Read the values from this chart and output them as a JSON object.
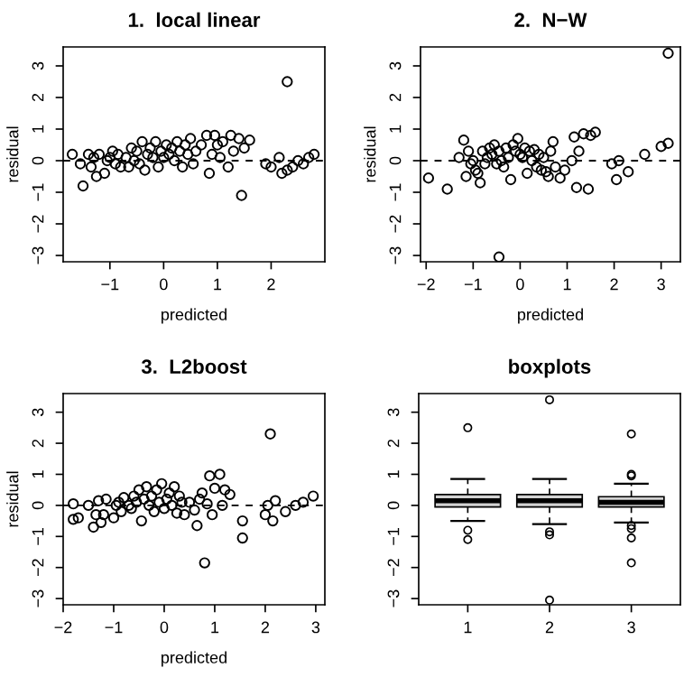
{
  "chart_data": [
    {
      "type": "scatter",
      "title": "1.  local linear",
      "xlabel": "predicted",
      "ylabel": "residual",
      "xlim": [
        -1.87,
        3.0
      ],
      "ylim": [
        -3.2,
        3.6
      ],
      "xticks": [
        -1,
        0,
        1,
        2
      ],
      "yticks": [
        -3,
        -2,
        -1,
        0,
        1,
        2,
        3
      ],
      "marker": "circle",
      "grid": false,
      "ref_lines": [
        {
          "axis": "y",
          "value": 0,
          "line_style": "dashed",
          "color": "#000000"
        }
      ],
      "series": [
        {
          "color": "#000000",
          "x": [
            -1.7,
            -1.55,
            -1.5,
            -1.4,
            -1.35,
            -1.3,
            -1.25,
            -1.2,
            -1.1,
            -1.05,
            -1.0,
            -0.95,
            -0.9,
            -0.85,
            -0.8,
            -0.7,
            -0.65,
            -0.6,
            -0.55,
            -0.5,
            -0.45,
            -0.4,
            -0.35,
            -0.3,
            -0.25,
            -0.2,
            -0.15,
            -0.1,
            -0.05,
            0.0,
            0.05,
            0.1,
            0.15,
            0.2,
            0.25,
            0.3,
            0.35,
            0.4,
            0.45,
            0.5,
            0.55,
            0.6,
            0.7,
            0.8,
            0.85,
            0.9,
            0.95,
            1.0,
            1.05,
            1.1,
            1.2,
            1.25,
            1.3,
            1.4,
            1.45,
            1.5,
            1.6,
            1.9,
            2.0,
            2.15,
            2.2,
            2.3,
            2.3,
            2.4,
            2.5,
            2.6,
            2.7,
            2.8
          ],
          "values": [
            0.2,
            -0.1,
            -0.8,
            0.2,
            -0.2,
            0.1,
            -0.5,
            0.2,
            -0.4,
            0.0,
            0.1,
            0.3,
            -0.1,
            0.2,
            -0.2,
            0.1,
            -0.2,
            0.4,
            0.0,
            0.3,
            -0.1,
            0.6,
            -0.3,
            0.2,
            0.4,
            0.1,
            0.6,
            -0.2,
            0.3,
            0.1,
            0.5,
            0.2,
            0.4,
            0.0,
            0.6,
            0.3,
            -0.2,
            0.5,
            0.2,
            0.7,
            -0.1,
            0.3,
            0.5,
            0.8,
            -0.4,
            0.2,
            0.8,
            0.5,
            0.1,
            0.6,
            -0.2,
            0.8,
            0.3,
            0.7,
            -1.1,
            0.4,
            0.65,
            -0.1,
            -0.2,
            0.1,
            -0.4,
            -0.3,
            2.5,
            -0.2,
            0.0,
            -0.1,
            0.1,
            0.2
          ]
        }
      ]
    },
    {
      "type": "scatter",
      "title": "2.  N−W",
      "xlabel": "predicted",
      "ylabel": "residual",
      "xlim": [
        -2.12,
        3.41
      ],
      "ylim": [
        -3.2,
        3.6
      ],
      "xticks": [
        -2,
        -1,
        0,
        1,
        2,
        3
      ],
      "yticks": [
        -3,
        -2,
        -1,
        0,
        1,
        2,
        3
      ],
      "marker": "circle",
      "grid": false,
      "ref_lines": [
        {
          "axis": "y",
          "value": 0,
          "line_style": "dashed",
          "color": "#000000"
        }
      ],
      "series": [
        {
          "color": "#000000",
          "x": [
            -1.95,
            -1.55,
            -1.3,
            -1.2,
            -1.15,
            -1.1,
            -1.05,
            -1.0,
            -0.95,
            -0.9,
            -0.85,
            -0.8,
            -0.75,
            -0.7,
            -0.65,
            -0.6,
            -0.55,
            -0.5,
            -0.45,
            -0.4,
            -0.35,
            -0.3,
            -0.25,
            -0.2,
            -0.15,
            -0.1,
            -0.05,
            0.0,
            0.05,
            0.1,
            0.15,
            0.2,
            0.25,
            0.3,
            0.35,
            0.4,
            0.45,
            0.5,
            0.55,
            0.6,
            0.65,
            0.7,
            0.75,
            0.85,
            0.95,
            1.1,
            1.15,
            1.2,
            1.25,
            1.35,
            1.45,
            1.5,
            1.6,
            1.95,
            2.05,
            2.1,
            2.3,
            2.65,
            3.0,
            3.15,
            3.15,
            -0.45
          ],
          "values": [
            -0.55,
            -0.9,
            0.1,
            0.65,
            -0.5,
            0.3,
            -0.1,
            0.0,
            -0.3,
            -0.4,
            -0.7,
            0.3,
            -0.1,
            0.1,
            0.4,
            0.2,
            0.5,
            -0.1,
            0.3,
            0.0,
            -0.2,
            0.4,
            0.1,
            -0.6,
            0.5,
            0.3,
            0.7,
            0.2,
            0.1,
            0.4,
            -0.4,
            0.3,
            0.0,
            0.35,
            -0.2,
            0.2,
            -0.3,
            0.1,
            -0.35,
            -0.5,
            0.3,
            0.6,
            -0.2,
            -0.55,
            -0.3,
            0.0,
            0.75,
            -0.85,
            0.3,
            0.85,
            -0.9,
            0.8,
            0.9,
            -0.1,
            -0.6,
            0.0,
            -0.35,
            0.2,
            0.45,
            0.55,
            3.4,
            -3.05
          ]
        }
      ]
    },
    {
      "type": "scatter",
      "title": "3.  L2boost",
      "xlabel": "predicted",
      "ylabel": "residual",
      "xlim": [
        -2.0,
        3.18
      ],
      "ylim": [
        -3.2,
        3.6
      ],
      "xticks": [
        -2,
        -1,
        0,
        1,
        2,
        3
      ],
      "yticks": [
        -3,
        -2,
        -1,
        0,
        1,
        2,
        3
      ],
      "marker": "circle",
      "grid": false,
      "ref_lines": [
        {
          "axis": "y",
          "value": 0,
          "line_style": "dashed",
          "color": "#000000"
        }
      ],
      "series": [
        {
          "color": "#000000",
          "x": [
            -1.8,
            -1.8,
            -1.7,
            -1.5,
            -1.4,
            -1.35,
            -1.3,
            -1.25,
            -1.2,
            -1.15,
            -1.0,
            -0.95,
            -0.9,
            -0.85,
            -0.8,
            -0.7,
            -0.65,
            -0.6,
            -0.55,
            -0.5,
            -0.45,
            -0.4,
            -0.35,
            -0.3,
            -0.25,
            -0.2,
            -0.15,
            -0.1,
            -0.05,
            0.0,
            0.05,
            0.1,
            0.15,
            0.2,
            0.25,
            0.3,
            0.35,
            0.4,
            0.5,
            0.6,
            0.65,
            0.7,
            0.75,
            0.8,
            0.85,
            0.9,
            0.95,
            1.0,
            1.1,
            1.15,
            1.2,
            1.3,
            1.55,
            1.55,
            2.0,
            2.05,
            2.1,
            2.15,
            2.2,
            2.4,
            2.6,
            2.75,
            2.95
          ],
          "values": [
            0.05,
            -0.45,
            -0.4,
            0.0,
            -0.7,
            -0.3,
            0.15,
            -0.55,
            -0.3,
            0.2,
            -0.4,
            0.0,
            0.1,
            -0.2,
            0.25,
            0.0,
            -0.1,
            0.3,
            0.1,
            0.5,
            -0.5,
            0.2,
            0.6,
            0.0,
            0.3,
            -0.2,
            0.5,
            0.1,
            0.7,
            -0.1,
            0.2,
            0.4,
            0.0,
            0.6,
            -0.25,
            0.3,
            0.1,
            -0.3,
            0.1,
            -0.15,
            -0.65,
            0.2,
            0.4,
            -1.85,
            0.05,
            0.95,
            -0.3,
            0.55,
            1.0,
            0.0,
            0.5,
            0.35,
            -0.5,
            -1.05,
            -0.3,
            0.0,
            2.3,
            -0.5,
            0.15,
            -0.2,
            0.0,
            0.1,
            0.3
          ]
        }
      ]
    },
    {
      "type": "box",
      "title": "boxplots",
      "categories": [
        "1",
        "2",
        "3"
      ],
      "ylim": [
        -3.2,
        3.6
      ],
      "yticks": [
        -3,
        -2,
        -1,
        0,
        1,
        2,
        3
      ],
      "grid": false,
      "series": [
        {
          "color": "#d3d3d3",
          "boxes": [
            {
              "low": -0.5,
              "q1": -0.05,
              "median": 0.15,
              "q3": 0.35,
              "high": 0.85,
              "outliers": [
                2.5,
                -0.8,
                -1.1
              ]
            },
            {
              "low": -0.6,
              "q1": -0.05,
              "median": 0.15,
              "q3": 0.35,
              "high": 0.85,
              "outliers": [
                3.4,
                -0.85,
                -0.95,
                -3.05
              ]
            },
            {
              "low": -0.55,
              "q1": -0.05,
              "median": 0.1,
              "q3": 0.28,
              "high": 0.7,
              "outliers": [
                2.3,
                0.95,
                1.0,
                -0.65,
                -0.75,
                -1.05,
                -1.85
              ]
            }
          ]
        }
      ]
    }
  ]
}
